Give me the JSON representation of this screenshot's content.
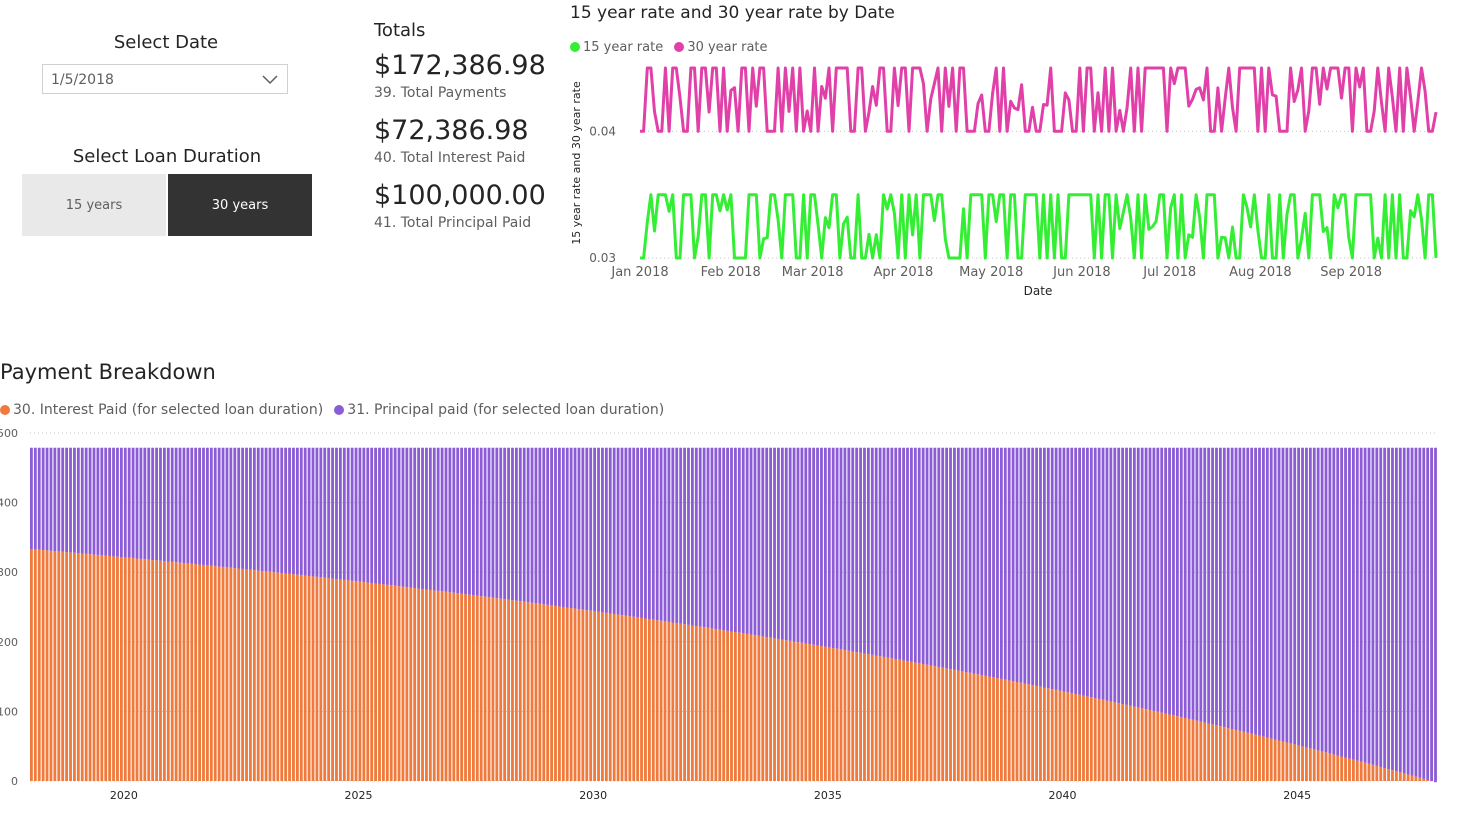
{
  "date_slicer": {
    "title": "Select Date",
    "value": "1/5/2018"
  },
  "duration_slicer": {
    "title": "Select Loan Duration",
    "options": [
      "15 years",
      "30 years"
    ],
    "selected": "30 years"
  },
  "totals": {
    "title": "Totals",
    "cards": [
      {
        "value": "$172,386.98",
        "label": "39. Total Payments"
      },
      {
        "value": "$72,386.98",
        "label": "40. Total Interest Paid"
      },
      {
        "value": "$100,000.00",
        "label": "41. Total Principal Paid"
      }
    ]
  },
  "colors": {
    "rate15": "#33ee33",
    "rate30": "#e040a8",
    "interest": "#f07a3c",
    "principal": "#8c5cd6",
    "button_on": "#333333",
    "button_off": "#e9e9e9"
  },
  "chart_data": [
    {
      "type": "line",
      "title": "15 year rate and 30 year rate by Date",
      "xlabel": "Date",
      "ylabel": "15 year rate and 30 year rate",
      "x_ticks": [
        "Jan 2018",
        "Feb 2018",
        "Mar 2018",
        "Apr 2018",
        "May 2018",
        "Jun 2018",
        "Jul 2018",
        "Aug 2018",
        "Sep 2018"
      ],
      "y_ticks": [
        "0.03",
        "0.04"
      ],
      "ylim": [
        0.03,
        0.045
      ],
      "x_range": [
        "2018-01-01",
        "2018-09-30"
      ],
      "legend": "top-left",
      "grid": true,
      "series": [
        {
          "name": "15 year rate",
          "color": "#33ee33",
          "low": 0.03,
          "high": 0.035
        },
        {
          "name": "30 year rate",
          "color": "#e040a8",
          "low": 0.04,
          "high": 0.045
        }
      ]
    },
    {
      "type": "bar",
      "stacked": true,
      "title": "Payment Breakdown",
      "x_ticks": [
        "2020",
        "2025",
        "2030",
        "2035",
        "2040",
        "2045"
      ],
      "y_ticks": [
        "0",
        "100",
        "200",
        "300",
        "400",
        "500"
      ],
      "ylim": [
        0,
        500
      ],
      "x_range": [
        2018.0,
        2048.0
      ],
      "legend": "top-left",
      "grid": true,
      "monthly_payment": 478.83,
      "interest_start": 333.33,
      "series": [
        {
          "name": "30. Interest Paid (for selected loan duration)",
          "color": "#f07a3c"
        },
        {
          "name": "31. Principal paid (for selected loan duration)",
          "color": "#8c5cd6"
        }
      ]
    }
  ]
}
